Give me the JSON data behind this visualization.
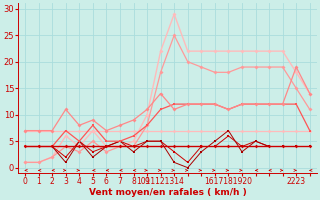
{
  "bg_color": "#cceee8",
  "grid_color": "#aadddd",
  "xlabel": "Vent moyen/en rafales ( km/h )",
  "xlabel_color": "#cc0000",
  "xlabel_fontsize": 6.5,
  "tick_color": "#cc0000",
  "tick_fontsize": 5.5,
  "ylim": [
    -1,
    31
  ],
  "yticks": [
    0,
    5,
    10,
    15,
    20,
    25,
    30
  ],
  "x_labels": [
    "0",
    "1",
    "2",
    "3",
    "4",
    "5",
    "6",
    "7",
    "8",
    "9",
    "1011121314",
    "",
    "",
    "",
    "",
    "1617181920",
    "",
    "",
    "",
    "",
    "2223",
    ""
  ],
  "n_points": 22,
  "series": [
    {
      "y": [
        7,
        7,
        7,
        7,
        7,
        7,
        7,
        7,
        7,
        7,
        7,
        7,
        7,
        7,
        7,
        7,
        7,
        7,
        7,
        7,
        7,
        7
      ],
      "color": "#ffbbbb",
      "lw": 0.9,
      "marker": "D",
      "ms": 1.8,
      "zorder": 2
    },
    {
      "y": [
        4,
        4,
        4,
        4,
        4,
        4,
        4,
        4,
        4,
        4,
        4,
        4,
        4,
        4,
        4,
        4,
        4,
        4,
        4,
        4,
        4,
        4
      ],
      "color": "#cc0000",
      "lw": 1.0,
      "marker": "D",
      "ms": 1.8,
      "zorder": 4
    },
    {
      "y": [
        4,
        4,
        4,
        2,
        5,
        3,
        4,
        5,
        4,
        5,
        5,
        3,
        1,
        4,
        4,
        6,
        4,
        5,
        4,
        4,
        4,
        4
      ],
      "color": "#cc0000",
      "lw": 0.7,
      "marker": "s",
      "ms": 1.5,
      "zorder": 3
    },
    {
      "y": [
        4,
        4,
        4,
        1,
        5,
        2,
        4,
        5,
        3,
        5,
        5,
        1,
        0,
        3,
        5,
        7,
        3,
        5,
        4,
        4,
        4,
        4
      ],
      "color": "#aa0000",
      "lw": 0.7,
      "marker": "s",
      "ms": 1.5,
      "zorder": 3
    },
    {
      "y": [
        4,
        4,
        4,
        7,
        5,
        8,
        5,
        5,
        6,
        8,
        11,
        12,
        12,
        12,
        12,
        11,
        12,
        12,
        12,
        12,
        12,
        7
      ],
      "color": "#ff5555",
      "lw": 0.9,
      "marker": "s",
      "ms": 2.0,
      "zorder": 3
    },
    {
      "y": [
        7,
        7,
        7,
        11,
        8,
        9,
        7,
        8,
        9,
        11,
        14,
        11,
        12,
        12,
        12,
        11,
        12,
        12,
        12,
        12,
        19,
        14
      ],
      "color": "#ff8888",
      "lw": 0.9,
      "marker": "D",
      "ms": 2.0,
      "zorder": 3
    },
    {
      "y": [
        1,
        1,
        2,
        6,
        4,
        7,
        4,
        4,
        5,
        10,
        22,
        29,
        22,
        22,
        22,
        22,
        22,
        22,
        22,
        22,
        18,
        14
      ],
      "color": "#ffbbbb",
      "lw": 1.0,
      "marker": "D",
      "ms": 2.0,
      "zorder": 2
    },
    {
      "y": [
        1,
        1,
        2,
        4,
        3,
        5,
        3,
        4,
        4,
        8,
        18,
        25,
        20,
        19,
        18,
        18,
        19,
        19,
        19,
        19,
        15,
        11
      ],
      "color": "#ff9999",
      "lw": 0.9,
      "marker": "D",
      "ms": 2.0,
      "zorder": 2
    }
  ],
  "arrow_dirs": [
    "left",
    "left",
    "left",
    "right",
    "right",
    "left",
    "left",
    "left",
    "left",
    "right",
    "right",
    "right",
    "right",
    "right",
    "right",
    "right",
    "right",
    "left",
    "left",
    "right",
    "right",
    "left"
  ],
  "arrow_color": "#cc0000"
}
